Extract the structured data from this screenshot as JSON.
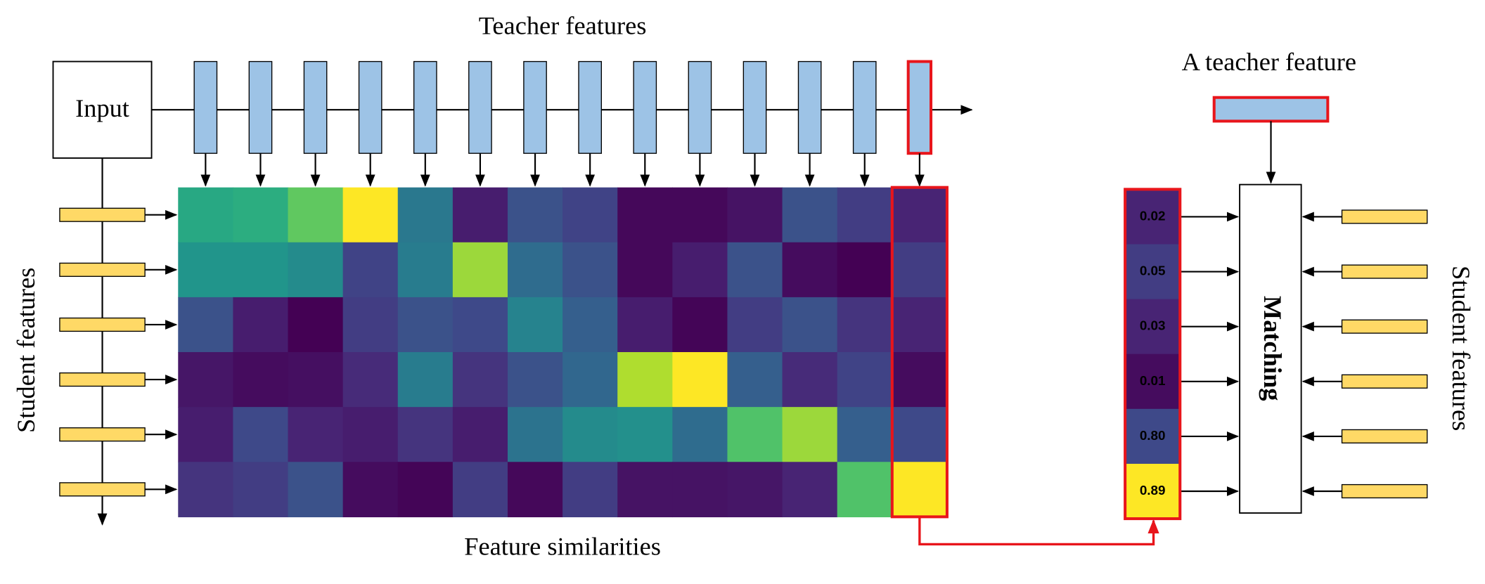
{
  "teacher_title": "Teacher features",
  "input_label": "Input",
  "student_left_label": "Student features",
  "similarities_label": "Feature similarities",
  "single_teacher_label": "A teacher feature",
  "matching_label": "Matching",
  "student_right_label": "Student features",
  "heatmap": {
    "values": [
      [
        0.6,
        0.62,
        0.75,
        1.0,
        0.4,
        0.08,
        0.25,
        0.2,
        0.02,
        0.02,
        0.05,
        0.25,
        0.18,
        0.1
      ],
      [
        0.52,
        0.52,
        0.48,
        0.2,
        0.42,
        0.85,
        0.35,
        0.25,
        0.02,
        0.08,
        0.25,
        0.03,
        0.0,
        0.18
      ],
      [
        0.25,
        0.08,
        0.0,
        0.18,
        0.25,
        0.22,
        0.45,
        0.3,
        0.08,
        0.01,
        0.18,
        0.25,
        0.15,
        0.1
      ],
      [
        0.06,
        0.03,
        0.04,
        0.12,
        0.42,
        0.15,
        0.25,
        0.33,
        0.88,
        1.0,
        0.3,
        0.12,
        0.2,
        0.03
      ],
      [
        0.08,
        0.22,
        0.1,
        0.08,
        0.15,
        0.08,
        0.38,
        0.48,
        0.5,
        0.35,
        0.72,
        0.85,
        0.3,
        0.22
      ],
      [
        0.15,
        0.18,
        0.25,
        0.03,
        0.01,
        0.18,
        0.02,
        0.18,
        0.05,
        0.05,
        0.06,
        0.1,
        0.72,
        1.0
      ]
    ]
  },
  "scores": [
    "0.02",
    "0.05",
    "0.03",
    "0.01",
    "0.80",
    "0.89"
  ]
}
